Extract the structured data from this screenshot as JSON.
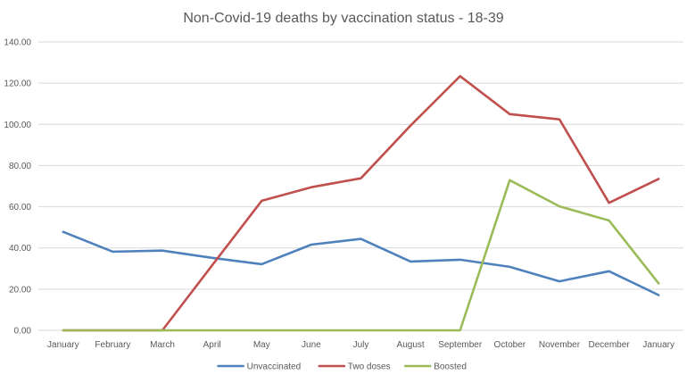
{
  "chart_data": {
    "type": "line",
    "title": "Non-Covid-19 deaths by vaccination status - 18-39",
    "xlabel": "",
    "ylabel": "",
    "ylim": [
      0,
      140
    ],
    "ytick_step": 20,
    "ytick_labels": [
      "0.00",
      "20.00",
      "40.00",
      "60.00",
      "80.00",
      "100.00",
      "120.00",
      "140.00"
    ],
    "grid": true,
    "legend_position": "bottom",
    "categories": [
      "January",
      "February",
      "March",
      "April",
      "May",
      "June",
      "July",
      "August",
      "September",
      "October",
      "November",
      "December",
      "January"
    ],
    "series": [
      {
        "name": "Unvaccinated",
        "color": "#4f81bd",
        "values": [
          47.8,
          38.2,
          38.7,
          35.2,
          32.1,
          41.6,
          44.4,
          33.4,
          34.3,
          30.8,
          23.8,
          28.7,
          17.1
        ]
      },
      {
        "name": "Two doses",
        "color": "#c0504d",
        "values": [
          0,
          0,
          0,
          31.5,
          62.9,
          69.5,
          73.8,
          99.4,
          123.4,
          105.0,
          102.4,
          61.9,
          73.5
        ]
      },
      {
        "name": "Boosted",
        "color": "#9bbb59",
        "values": [
          0,
          0,
          0,
          0,
          0,
          0,
          0,
          0,
          0,
          72.9,
          60.2,
          53.3,
          22.8
        ]
      }
    ]
  }
}
